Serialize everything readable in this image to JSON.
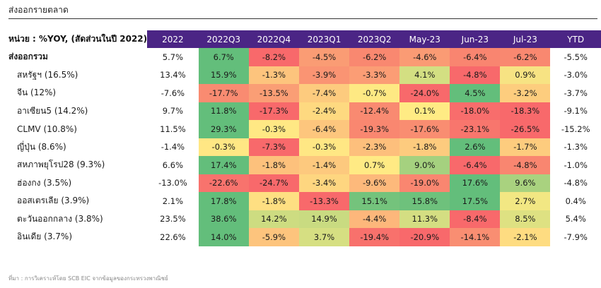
{
  "page": {
    "title": "ส่งออกรายตลาด",
    "footer": "ที่มา : การวิเคราะห์โดย SCB EIC จากข้อมูลของกระทรวงพาณิชย์"
  },
  "table": {
    "unit_label": "หน่วย : %YOY, (สัดส่วนในปี 2022)",
    "columns": [
      "2022",
      "2022Q3",
      "2022Q4",
      "2023Q1",
      "2023Q2",
      "May-23",
      "Jun-23",
      "Jul-23",
      "YTD"
    ],
    "header_color": "#4B2585",
    "rows": [
      {
        "label": "ส่งออกรวม",
        "total": true,
        "values": [
          "5.7%",
          "6.7%",
          "-8.2%",
          "-4.5%",
          "-6.2%",
          "-4.6%",
          "-6.4%",
          "-6.2%",
          "-5.5%"
        ],
        "colors": [
          "#63BE7B",
          "#F8696B",
          "#FA9C74",
          "#F98870",
          "#FA9B74",
          "#F98570",
          "#F98870"
        ]
      },
      {
        "label": "สหรัฐฯ (16.5%)",
        "values": [
          "13.4%",
          "15.9%",
          "-1.3%",
          "-3.9%",
          "-3.3%",
          "4.1%",
          "-4.8%",
          "0.9%",
          "-3.0%"
        ],
        "colors": [
          "#63BE7B",
          "#FDC47D",
          "#FA9473",
          "#FB9D75",
          "#D3DF82",
          "#F8696B",
          "#F7E383"
        ]
      },
      {
        "label": "จีน (12%)",
        "values": [
          "-7.6%",
          "-17.7%",
          "-13.5%",
          "-7.4%",
          "-0.7%",
          "-24.0%",
          "4.5%",
          "-3.2%",
          "-3.7%"
        ],
        "colors": [
          "#F98B71",
          "#FA9E75",
          "#FDCB7E",
          "#FEE983",
          "#F8696B",
          "#63BE7B",
          "#FDCD7E"
        ]
      },
      {
        "label": "อาเซียน5 (14.2%)",
        "values": [
          "9.7%",
          "11.8%",
          "-17.3%",
          "-2.4%",
          "-12.4%",
          "0.1%",
          "-18.0%",
          "-18.3%",
          "-9.1%"
        ],
        "colors": [
          "#63BE7B",
          "#F8696B",
          "#FED980",
          "#F98A71",
          "#FFEB84",
          "#F86D6C",
          "#F8696B"
        ]
      },
      {
        "label": "CLMV (10.8%)",
        "values": [
          "11.5%",
          "29.3%",
          "-0.3%",
          "-6.4%",
          "-19.3%",
          "-17.6%",
          "-23.1%",
          "-26.5%",
          "-15.2%"
        ],
        "colors": [
          "#63BE7B",
          "#FFE884",
          "#FDC67D",
          "#F98770",
          "#F98D71",
          "#F8766D",
          "#F8696B"
        ]
      },
      {
        "label": "ญี่ปุ่น (8.6%)",
        "values": [
          "-1.4%",
          "-0.3%",
          "-7.3%",
          "-0.3%",
          "-2.3%",
          "-1.8%",
          "2.6%",
          "-1.7%",
          "-1.3%"
        ],
        "colors": [
          "#FFE784",
          "#F8696B",
          "#FFE784",
          "#FDBF7C",
          "#FDCB7E",
          "#63BE7B",
          "#FDCC7E"
        ]
      },
      {
        "label": "สหภาพยุโรป28 (9.3%)",
        "values": [
          "6.6%",
          "17.4%",
          "-1.8%",
          "-1.4%",
          "0.7%",
          "9.0%",
          "-6.4%",
          "-4.8%",
          "-1.0%"
        ],
        "colors": [
          "#63BE7B",
          "#FDC17C",
          "#FDC97E",
          "#FFEA84",
          "#A5D17F",
          "#F8696B",
          "#F98670"
        ]
      },
      {
        "label": "ฮ่องกง (3.5%)",
        "values": [
          "-13.0%",
          "-22.6%",
          "-24.7%",
          "-3.4%",
          "-9.6%",
          "-19.0%",
          "17.6%",
          "9.6%",
          "-4.8%"
        ],
        "colors": [
          "#F8736D",
          "#F8696B",
          "#FED680",
          "#FDB97B",
          "#F98670",
          "#63BE7B",
          "#A9D27F"
        ]
      },
      {
        "label": "ออสเตรเลีย (3.9%)",
        "values": [
          "2.1%",
          "17.8%",
          "-1.8%",
          "-13.3%",
          "15.1%",
          "15.8%",
          "17.5%",
          "2.7%",
          "0.4%"
        ],
        "colors": [
          "#63BE7B",
          "#FEDF82",
          "#F8696B",
          "#74C37C",
          "#6EC17C",
          "#63BE7B",
          "#F2E783"
        ]
      },
      {
        "label": "ตะวันออกกลาง (3.8%)",
        "values": [
          "23.5%",
          "38.6%",
          "14.2%",
          "14.9%",
          "-4.4%",
          "11.3%",
          "-8.4%",
          "8.5%",
          "5.4%"
        ],
        "colors": [
          "#63BE7B",
          "#CDDC81",
          "#C9DB81",
          "#FDB77B",
          "#D4DE82",
          "#F8696B",
          "#DEE182"
        ]
      },
      {
        "label": "อินเดีย (3.7%)",
        "values": [
          "22.6%",
          "14.0%",
          "-5.9%",
          "3.7%",
          "-19.4%",
          "-20.9%",
          "-14.1%",
          "-2.1%",
          "-7.9%"
        ],
        "colors": [
          "#63BE7B",
          "#FDC47D",
          "#D6DF82",
          "#F8716C",
          "#F8696B",
          "#F98E72",
          "#FEDC81"
        ]
      }
    ]
  }
}
